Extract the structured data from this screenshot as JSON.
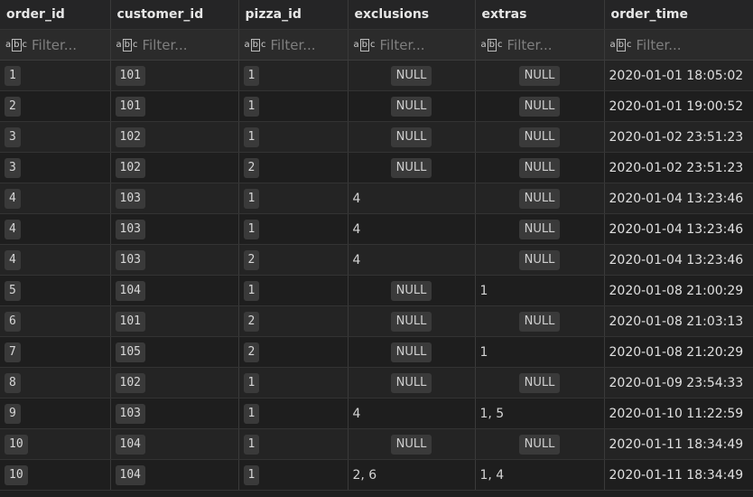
{
  "columns": [
    "order_id",
    "customer_id",
    "pizza_id",
    "exclusions",
    "extras",
    "order_time"
  ],
  "filter_placeholder": "Filter...",
  "null_label": "NULL",
  "rows": [
    {
      "order_id": "1",
      "customer_id": "101",
      "pizza_id": "1",
      "exclusions": null,
      "extras": null,
      "order_time": "2020-01-01 18:05:02"
    },
    {
      "order_id": "2",
      "customer_id": "101",
      "pizza_id": "1",
      "exclusions": null,
      "extras": null,
      "order_time": "2020-01-01 19:00:52"
    },
    {
      "order_id": "3",
      "customer_id": "102",
      "pizza_id": "1",
      "exclusions": null,
      "extras": null,
      "order_time": "2020-01-02 23:51:23"
    },
    {
      "order_id": "3",
      "customer_id": "102",
      "pizza_id": "2",
      "exclusions": null,
      "extras": null,
      "order_time": "2020-01-02 23:51:23"
    },
    {
      "order_id": "4",
      "customer_id": "103",
      "pizza_id": "1",
      "exclusions": "4",
      "extras": null,
      "order_time": "2020-01-04 13:23:46"
    },
    {
      "order_id": "4",
      "customer_id": "103",
      "pizza_id": "1",
      "exclusions": "4",
      "extras": null,
      "order_time": "2020-01-04 13:23:46"
    },
    {
      "order_id": "4",
      "customer_id": "103",
      "pizza_id": "2",
      "exclusions": "4",
      "extras": null,
      "order_time": "2020-01-04 13:23:46"
    },
    {
      "order_id": "5",
      "customer_id": "104",
      "pizza_id": "1",
      "exclusions": null,
      "extras": "1",
      "order_time": "2020-01-08 21:00:29"
    },
    {
      "order_id": "6",
      "customer_id": "101",
      "pizza_id": "2",
      "exclusions": null,
      "extras": null,
      "order_time": "2020-01-08 21:03:13"
    },
    {
      "order_id": "7",
      "customer_id": "105",
      "pizza_id": "2",
      "exclusions": null,
      "extras": "1",
      "order_time": "2020-01-08 21:20:29"
    },
    {
      "order_id": "8",
      "customer_id": "102",
      "pizza_id": "1",
      "exclusions": null,
      "extras": null,
      "order_time": "2020-01-09 23:54:33"
    },
    {
      "order_id": "9",
      "customer_id": "103",
      "pizza_id": "1",
      "exclusions": "4",
      "extras": "1, 5",
      "order_time": "2020-01-10 11:22:59"
    },
    {
      "order_id": "10",
      "customer_id": "104",
      "pizza_id": "1",
      "exclusions": null,
      "extras": null,
      "order_time": "2020-01-11 18:34:49"
    },
    {
      "order_id": "10",
      "customer_id": "104",
      "pizza_id": "1",
      "exclusions": "2, 6",
      "extras": "1, 4",
      "order_time": "2020-01-11 18:34:49"
    }
  ]
}
